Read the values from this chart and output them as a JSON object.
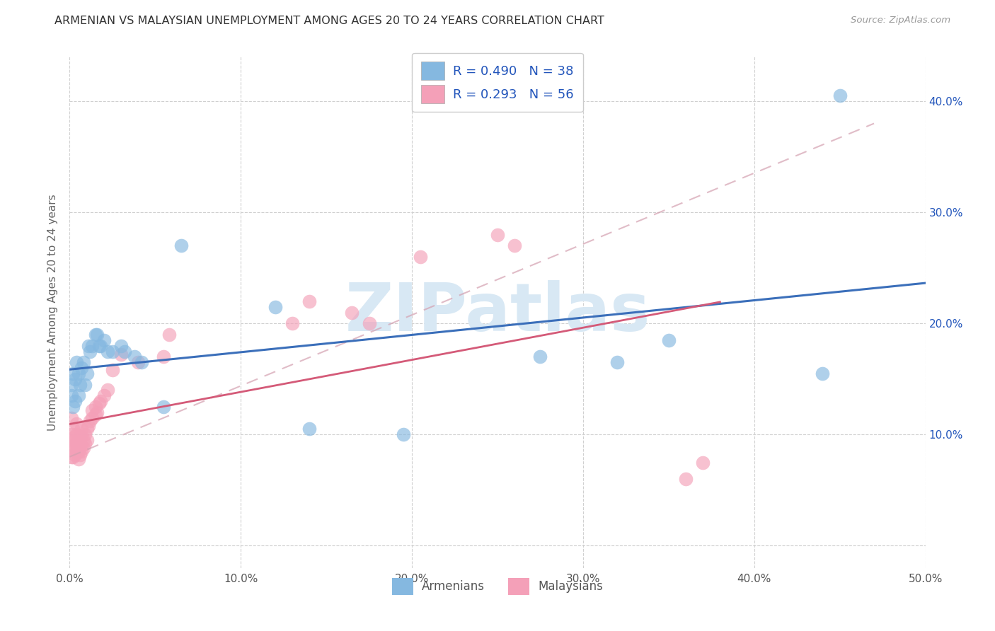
{
  "title": "ARMENIAN VS MALAYSIAN UNEMPLOYMENT AMONG AGES 20 TO 24 YEARS CORRELATION CHART",
  "source": "Source: ZipAtlas.com",
  "ylabel": "Unemployment Among Ages 20 to 24 years",
  "xlim": [
    0.0,
    0.5
  ],
  "ylim": [
    -0.02,
    0.44
  ],
  "xticks": [
    0.0,
    0.1,
    0.2,
    0.3,
    0.4,
    0.5
  ],
  "yticks": [
    0.0,
    0.1,
    0.2,
    0.3,
    0.4
  ],
  "xtick_labels": [
    "0.0%",
    "10.0%",
    "20.0%",
    "30.0%",
    "40.0%",
    "50.0%"
  ],
  "ytick_labels_left": [
    "",
    "",
    "",
    "",
    ""
  ],
  "ytick_labels_right": [
    "",
    "10.0%",
    "20.0%",
    "30.0%",
    "40.0%"
  ],
  "armenians_color": "#85b8e0",
  "malaysians_color": "#f4a0b8",
  "armenians_line_color": "#3b6fba",
  "malaysians_line_color": "#d45a78",
  "dashed_line_color": "#ccb8b8",
  "armenians_R": 0.49,
  "armenians_N": 38,
  "malaysians_R": 0.293,
  "malaysians_N": 56,
  "legend_text_color": "#2255bb",
  "background_color": "#ffffff",
  "grid_color": "#d0d0d0",
  "armenians_x": [
    0.001,
    0.001,
    0.002,
    0.002,
    0.003,
    0.003,
    0.004,
    0.005,
    0.005,
    0.006,
    0.007,
    0.008,
    0.009,
    0.01,
    0.011,
    0.012,
    0.013,
    0.015,
    0.016,
    0.017,
    0.018,
    0.02,
    0.022,
    0.025,
    0.03,
    0.032,
    0.038,
    0.042,
    0.055,
    0.065,
    0.12,
    0.14,
    0.195,
    0.275,
    0.32,
    0.35,
    0.44,
    0.45
  ],
  "armenians_y": [
    0.135,
    0.145,
    0.125,
    0.155,
    0.13,
    0.15,
    0.165,
    0.135,
    0.155,
    0.145,
    0.16,
    0.165,
    0.145,
    0.155,
    0.18,
    0.175,
    0.18,
    0.19,
    0.19,
    0.18,
    0.18,
    0.185,
    0.175,
    0.175,
    0.18,
    0.175,
    0.17,
    0.165,
    0.125,
    0.27,
    0.215,
    0.105,
    0.1,
    0.17,
    0.165,
    0.185,
    0.155,
    0.405
  ],
  "malaysians_x": [
    0.001,
    0.001,
    0.001,
    0.001,
    0.002,
    0.002,
    0.002,
    0.002,
    0.003,
    0.003,
    0.003,
    0.004,
    0.004,
    0.004,
    0.004,
    0.005,
    0.005,
    0.005,
    0.006,
    0.006,
    0.006,
    0.007,
    0.007,
    0.007,
    0.007,
    0.008,
    0.008,
    0.009,
    0.009,
    0.01,
    0.01,
    0.011,
    0.012,
    0.013,
    0.013,
    0.015,
    0.015,
    0.016,
    0.017,
    0.018,
    0.02,
    0.022,
    0.025,
    0.03,
    0.04,
    0.055,
    0.058,
    0.13,
    0.14,
    0.165,
    0.175,
    0.205,
    0.25,
    0.26,
    0.36,
    0.37
  ],
  "malaysians_y": [
    0.08,
    0.09,
    0.1,
    0.115,
    0.08,
    0.088,
    0.095,
    0.105,
    0.082,
    0.09,
    0.098,
    0.085,
    0.092,
    0.1,
    0.11,
    0.078,
    0.085,
    0.095,
    0.082,
    0.092,
    0.098,
    0.085,
    0.09,
    0.098,
    0.105,
    0.088,
    0.095,
    0.092,
    0.1,
    0.095,
    0.105,
    0.108,
    0.112,
    0.115,
    0.122,
    0.118,
    0.125,
    0.12,
    0.128,
    0.13,
    0.135,
    0.14,
    0.158,
    0.172,
    0.165,
    0.17,
    0.19,
    0.2,
    0.22,
    0.21,
    0.2,
    0.26,
    0.28,
    0.27,
    0.06,
    0.075
  ],
  "watermark": "ZIPatlas",
  "watermark_color": "#d8e8f4"
}
